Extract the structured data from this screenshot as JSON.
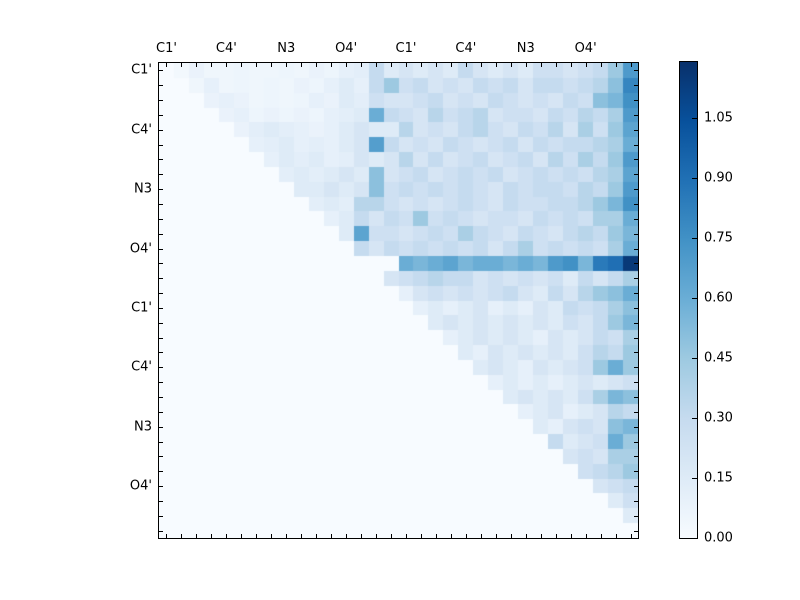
{
  "figure": {
    "background": "#ffffff",
    "axis_color": "#000000"
  },
  "chart_data": {
    "type": "heatmap",
    "title": "",
    "xlabel": "",
    "ylabel": "",
    "matrix_size": 32,
    "grid": false,
    "x_tick_labels": [
      "C1'",
      "C4'",
      "N3",
      "O4'",
      "C1'",
      "C4'",
      "N3",
      "O4'"
    ],
    "y_tick_labels": [
      "C1'",
      "C4'",
      "N3",
      "O4'",
      "C1'",
      "C4'",
      "N3",
      "O4'"
    ],
    "label_every_n_cells": 4,
    "label_offset_cells": 0.5,
    "minor_ticks_every_cell": true,
    "vmin": 0.0,
    "vmax": 1.19,
    "colormap": {
      "name": "Blues",
      "stops": [
        "#f7fbff",
        "#deebf7",
        "#c6dbef",
        "#9ecae1",
        "#6baed6",
        "#4292c6",
        "#2171b5",
        "#08519c",
        "#08306b"
      ]
    },
    "colorbar": {
      "position": "right",
      "tick_labels": [
        "0.00",
        "0.15",
        "0.30",
        "0.45",
        "0.60",
        "0.75",
        "0.90",
        "1.05"
      ],
      "tick_values": [
        0.0,
        0.15,
        0.3,
        0.45,
        0.6,
        0.75,
        0.9,
        1.05
      ]
    },
    "values": [
      [
        0,
        0.03,
        0.08,
        0.05,
        0.05,
        0.06,
        0.05,
        0.05,
        0.06,
        0.05,
        0.08,
        0.06,
        0.1,
        0.12,
        0.3,
        0.15,
        0.2,
        0.15,
        0.2,
        0.15,
        0.3,
        0.2,
        0.15,
        0.2,
        0.15,
        0.25,
        0.25,
        0.2,
        0.25,
        0.3,
        0.45,
        0.7
      ],
      [
        0,
        0,
        0.05,
        0.1,
        0.05,
        0.06,
        0.05,
        0.06,
        0.05,
        0.08,
        0.06,
        0.1,
        0.15,
        0.1,
        0.3,
        0.45,
        0.25,
        0.3,
        0.2,
        0.25,
        0.2,
        0.3,
        0.25,
        0.3,
        0.2,
        0.3,
        0.3,
        0.25,
        0.3,
        0.35,
        0.5,
        0.8
      ],
      [
        0,
        0,
        0,
        0.08,
        0.1,
        0.08,
        0.05,
        0.06,
        0.05,
        0.06,
        0.1,
        0.08,
        0.15,
        0.12,
        0.25,
        0.2,
        0.2,
        0.25,
        0.3,
        0.2,
        0.25,
        0.2,
        0.3,
        0.25,
        0.2,
        0.25,
        0.2,
        0.3,
        0.25,
        0.5,
        0.55,
        0.75
      ],
      [
        0,
        0,
        0,
        0,
        0.08,
        0.1,
        0.06,
        0.08,
        0.06,
        0.08,
        0.06,
        0.1,
        0.12,
        0.15,
        0.6,
        0.3,
        0.25,
        0.2,
        0.35,
        0.25,
        0.3,
        0.35,
        0.2,
        0.25,
        0.25,
        0.2,
        0.3,
        0.25,
        0.35,
        0.3,
        0.4,
        0.7
      ],
      [
        0,
        0,
        0,
        0,
        0,
        0.08,
        0.12,
        0.15,
        0.12,
        0.1,
        0.08,
        0.1,
        0.15,
        0.2,
        0.15,
        0.15,
        0.35,
        0.2,
        0.25,
        0.2,
        0.3,
        0.35,
        0.25,
        0.2,
        0.3,
        0.25,
        0.35,
        0.2,
        0.4,
        0.25,
        0.45,
        0.65
      ],
      [
        0,
        0,
        0,
        0,
        0,
        0,
        0.1,
        0.12,
        0.15,
        0.1,
        0.12,
        0.1,
        0.15,
        0.2,
        0.68,
        0.3,
        0.2,
        0.25,
        0.2,
        0.3,
        0.25,
        0.2,
        0.25,
        0.3,
        0.2,
        0.3,
        0.25,
        0.3,
        0.3,
        0.35,
        0.4,
        0.6
      ],
      [
        0,
        0,
        0,
        0,
        0,
        0,
        0,
        0.1,
        0.15,
        0.12,
        0.15,
        0.1,
        0.12,
        0.2,
        0.15,
        0.2,
        0.35,
        0.2,
        0.3,
        0.2,
        0.25,
        0.3,
        0.2,
        0.25,
        0.3,
        0.2,
        0.35,
        0.25,
        0.4,
        0.3,
        0.45,
        0.7
      ],
      [
        0,
        0,
        0,
        0,
        0,
        0,
        0,
        0,
        0.12,
        0.15,
        0.12,
        0.15,
        0.2,
        0.15,
        0.5,
        0.2,
        0.25,
        0.3,
        0.2,
        0.25,
        0.3,
        0.25,
        0.3,
        0.2,
        0.25,
        0.3,
        0.25,
        0.3,
        0.25,
        0.35,
        0.4,
        0.65
      ],
      [
        0,
        0,
        0,
        0,
        0,
        0,
        0,
        0,
        0,
        0.15,
        0.15,
        0.2,
        0.15,
        0.2,
        0.5,
        0.25,
        0.3,
        0.25,
        0.3,
        0.25,
        0.3,
        0.25,
        0.2,
        0.3,
        0.25,
        0.3,
        0.3,
        0.25,
        0.35,
        0.3,
        0.45,
        0.7
      ],
      [
        0,
        0,
        0,
        0,
        0,
        0,
        0,
        0,
        0,
        0,
        0.12,
        0.15,
        0.12,
        0.35,
        0.35,
        0.25,
        0.2,
        0.25,
        0.2,
        0.25,
        0.3,
        0.25,
        0.2,
        0.3,
        0.25,
        0.25,
        0.3,
        0.3,
        0.35,
        0.45,
        0.55,
        0.75
      ],
      [
        0,
        0,
        0,
        0,
        0,
        0,
        0,
        0,
        0,
        0,
        0,
        0.1,
        0.15,
        0.3,
        0.2,
        0.3,
        0.25,
        0.45,
        0.25,
        0.3,
        0.25,
        0.2,
        0.25,
        0.25,
        0.2,
        0.3,
        0.25,
        0.3,
        0.25,
        0.4,
        0.4,
        0.6
      ],
      [
        0,
        0,
        0,
        0,
        0,
        0,
        0,
        0,
        0,
        0,
        0,
        0,
        0.15,
        0.65,
        0.25,
        0.25,
        0.2,
        0.25,
        0.3,
        0.25,
        0.4,
        0.3,
        0.25,
        0.2,
        0.3,
        0.25,
        0.2,
        0.3,
        0.35,
        0.3,
        0.45,
        0.55
      ],
      [
        0,
        0,
        0,
        0,
        0,
        0,
        0,
        0,
        0,
        0,
        0,
        0,
        0,
        0.3,
        0.2,
        0.3,
        0.25,
        0.3,
        0.25,
        0.3,
        0.25,
        0.3,
        0.2,
        0.3,
        0.4,
        0.25,
        0.3,
        0.25,
        0.3,
        0.25,
        0.4,
        0.6
      ],
      [
        0,
        0,
        0,
        0,
        0,
        0,
        0,
        0,
        0,
        0,
        0,
        0,
        0,
        0,
        0,
        0,
        0.6,
        0.55,
        0.6,
        0.65,
        0.55,
        0.6,
        0.6,
        0.55,
        0.6,
        0.55,
        0.7,
        0.75,
        0.55,
        0.85,
        0.9,
        1.15
      ],
      [
        0,
        0,
        0,
        0,
        0,
        0,
        0,
        0,
        0,
        0,
        0,
        0,
        0,
        0,
        0,
        0.2,
        0.25,
        0.3,
        0.35,
        0.3,
        0.3,
        0.2,
        0.25,
        0.2,
        0.25,
        0.2,
        0.25,
        0.15,
        0.3,
        0.2,
        0.3,
        0.4
      ],
      [
        0,
        0,
        0,
        0,
        0,
        0,
        0,
        0,
        0,
        0,
        0,
        0,
        0,
        0,
        0,
        0,
        0.1,
        0.2,
        0.25,
        0.2,
        0.25,
        0.2,
        0.25,
        0.3,
        0.2,
        0.15,
        0.3,
        0.2,
        0.35,
        0.45,
        0.5,
        0.6
      ],
      [
        0,
        0,
        0,
        0,
        0,
        0,
        0,
        0,
        0,
        0,
        0,
        0,
        0,
        0,
        0,
        0,
        0,
        0.1,
        0.15,
        0.1,
        0.15,
        0.2,
        0.1,
        0.15,
        0.1,
        0.2,
        0.15,
        0.3,
        0.25,
        0.3,
        0.4,
        0.5
      ],
      [
        0,
        0,
        0,
        0,
        0,
        0,
        0,
        0,
        0,
        0,
        0,
        0,
        0,
        0,
        0,
        0,
        0,
        0,
        0.15,
        0.2,
        0.15,
        0.2,
        0.15,
        0.2,
        0.15,
        0.2,
        0.15,
        0.25,
        0.2,
        0.3,
        0.45,
        0.55
      ],
      [
        0,
        0,
        0,
        0,
        0,
        0,
        0,
        0,
        0,
        0,
        0,
        0,
        0,
        0,
        0,
        0,
        0,
        0,
        0,
        0.1,
        0.15,
        0.2,
        0.15,
        0.2,
        0.15,
        0.1,
        0.2,
        0.15,
        0.2,
        0.3,
        0.25,
        0.4
      ],
      [
        0,
        0,
        0,
        0,
        0,
        0,
        0,
        0,
        0,
        0,
        0,
        0,
        0,
        0,
        0,
        0,
        0,
        0,
        0,
        0,
        0.15,
        0.1,
        0.2,
        0.15,
        0.2,
        0.15,
        0.2,
        0.15,
        0.25,
        0.35,
        0.3,
        0.45
      ],
      [
        0,
        0,
        0,
        0,
        0,
        0,
        0,
        0,
        0,
        0,
        0,
        0,
        0,
        0,
        0,
        0,
        0,
        0,
        0,
        0,
        0,
        0.15,
        0.2,
        0.15,
        0.1,
        0.2,
        0.15,
        0.2,
        0.25,
        0.45,
        0.6,
        0.45
      ],
      [
        0,
        0,
        0,
        0,
        0,
        0,
        0,
        0,
        0,
        0,
        0,
        0,
        0,
        0,
        0,
        0,
        0,
        0,
        0,
        0,
        0,
        0,
        0.1,
        0.15,
        0.1,
        0.15,
        0.1,
        0.15,
        0.2,
        0.15,
        0.2,
        0.25
      ],
      [
        0,
        0,
        0,
        0,
        0,
        0,
        0,
        0,
        0,
        0,
        0,
        0,
        0,
        0,
        0,
        0,
        0,
        0,
        0,
        0,
        0,
        0,
        0,
        0.15,
        0.2,
        0.15,
        0.2,
        0.15,
        0.25,
        0.4,
        0.55,
        0.5
      ],
      [
        0,
        0,
        0,
        0,
        0,
        0,
        0,
        0,
        0,
        0,
        0,
        0,
        0,
        0,
        0,
        0,
        0,
        0,
        0,
        0,
        0,
        0,
        0,
        0,
        0.1,
        0.15,
        0.2,
        0.1,
        0.15,
        0.2,
        0.35,
        0.3
      ],
      [
        0,
        0,
        0,
        0,
        0,
        0,
        0,
        0,
        0,
        0,
        0,
        0,
        0,
        0,
        0,
        0,
        0,
        0,
        0,
        0,
        0,
        0,
        0,
        0,
        0,
        0.15,
        0.1,
        0.2,
        0.25,
        0.2,
        0.5,
        0.55
      ],
      [
        0,
        0,
        0,
        0,
        0,
        0,
        0,
        0,
        0,
        0,
        0,
        0,
        0,
        0,
        0,
        0,
        0,
        0,
        0,
        0,
        0,
        0,
        0,
        0,
        0,
        0,
        0.3,
        0.15,
        0.2,
        0.25,
        0.6,
        0.45
      ],
      [
        0,
        0,
        0,
        0,
        0,
        0,
        0,
        0,
        0,
        0,
        0,
        0,
        0,
        0,
        0,
        0,
        0,
        0,
        0,
        0,
        0,
        0,
        0,
        0,
        0,
        0,
        0,
        0.2,
        0.25,
        0.2,
        0.4,
        0.4
      ],
      [
        0,
        0,
        0,
        0,
        0,
        0,
        0,
        0,
        0,
        0,
        0,
        0,
        0,
        0,
        0,
        0,
        0,
        0,
        0,
        0,
        0,
        0,
        0,
        0,
        0,
        0,
        0,
        0,
        0.25,
        0.3,
        0.35,
        0.45
      ],
      [
        0,
        0,
        0,
        0,
        0,
        0,
        0,
        0,
        0,
        0,
        0,
        0,
        0,
        0,
        0,
        0,
        0,
        0,
        0,
        0,
        0,
        0,
        0,
        0,
        0,
        0,
        0,
        0,
        0,
        0.2,
        0.25,
        0.3
      ],
      [
        0,
        0,
        0,
        0,
        0,
        0,
        0,
        0,
        0,
        0,
        0,
        0,
        0,
        0,
        0,
        0,
        0,
        0,
        0,
        0,
        0,
        0,
        0,
        0,
        0,
        0,
        0,
        0,
        0,
        0,
        0.15,
        0.25
      ],
      [
        0,
        0,
        0,
        0,
        0,
        0,
        0,
        0,
        0,
        0,
        0,
        0,
        0,
        0,
        0,
        0,
        0,
        0,
        0,
        0,
        0,
        0,
        0,
        0,
        0,
        0,
        0,
        0,
        0,
        0,
        0,
        0.15
      ],
      [
        0,
        0,
        0,
        0,
        0,
        0,
        0,
        0,
        0,
        0,
        0,
        0,
        0,
        0,
        0,
        0,
        0,
        0,
        0,
        0,
        0,
        0,
        0,
        0,
        0,
        0,
        0,
        0,
        0,
        0,
        0,
        0
      ]
    ]
  }
}
